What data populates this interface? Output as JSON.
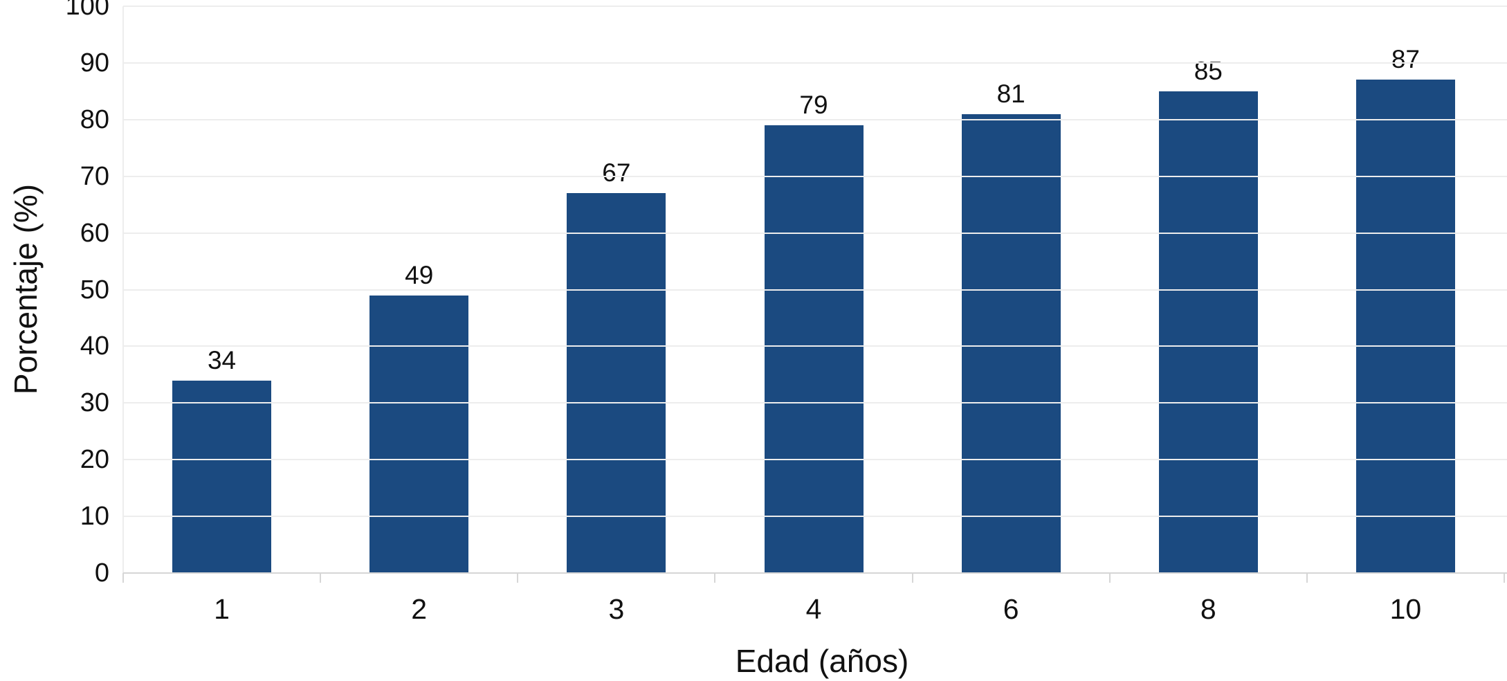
{
  "chart_data": {
    "type": "bar",
    "categories": [
      "1",
      "2",
      "3",
      "4",
      "6",
      "8",
      "10"
    ],
    "values": [
      34,
      49,
      67,
      79,
      81,
      85,
      87
    ],
    "xlabel": "Edad (años)",
    "ylabel": "Porcentaje (%)",
    "ylim": [
      0,
      100
    ],
    "yticks": [
      0,
      10,
      20,
      30,
      40,
      50,
      60,
      70,
      80,
      90,
      100
    ],
    "grid": "horizontal",
    "legend": "none",
    "bar_color": "#1b4a80",
    "grid_color": "#ededed",
    "axis_line_color": "#d6d6d6",
    "text_color": "#111111",
    "background_color": "#ffffff"
  }
}
